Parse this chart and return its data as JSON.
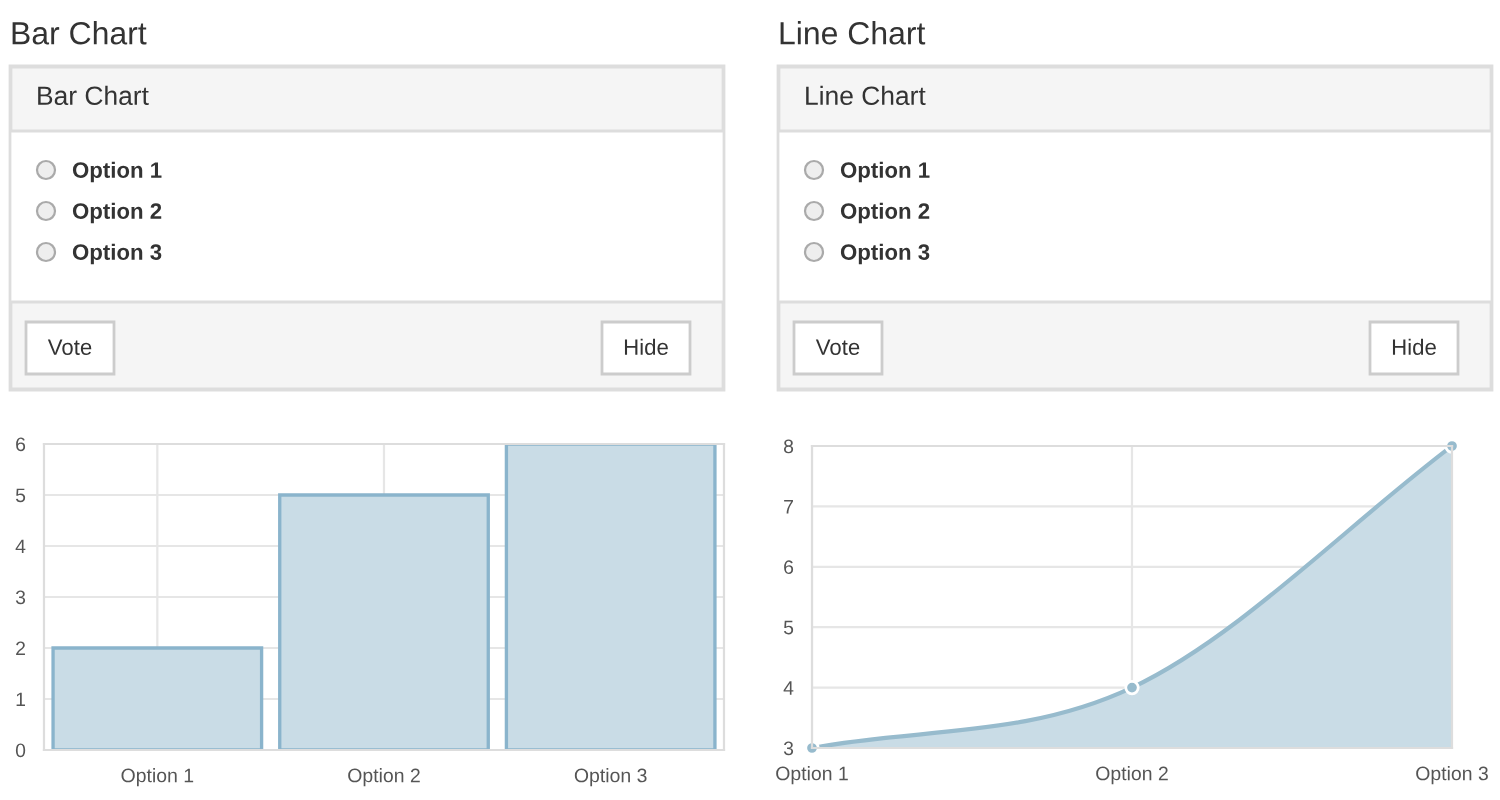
{
  "chart_data": [
    {
      "type": "other",
      "title": "Bar Chart",
      "subtitle": "Bar Chart",
      "annotations": [
        "Option 1",
        "Option 2",
        "Option 3",
        "Vote",
        "Hide"
      ]
    },
    {
      "type": "bar",
      "categories": [
        "Option 1",
        "Option 2",
        "Option 3"
      ],
      "values": [
        2,
        5,
        6
      ],
      "color": "#c9dce6",
      "ylim": [
        0,
        6
      ],
      "yticks": [
        0,
        1,
        2,
        3,
        4,
        5,
        6
      ],
      "grid": true
    },
    {
      "type": "other",
      "title": "Line Chart",
      "subtitle": "Line Chart",
      "annotations": [
        "Option 1",
        "Option 2",
        "Option 3",
        "Vote",
        "Hide"
      ]
    },
    {
      "type": "area",
      "categories": [
        "Option 1",
        "Option 2",
        "Option 3"
      ],
      "values": [
        3,
        4,
        8
      ],
      "color": "#97bbcd",
      "ylim": [
        3,
        8
      ],
      "yticks": [
        3,
        4,
        5,
        6,
        7,
        8
      ],
      "grid": true,
      "marker": "circle"
    }
  ]
}
